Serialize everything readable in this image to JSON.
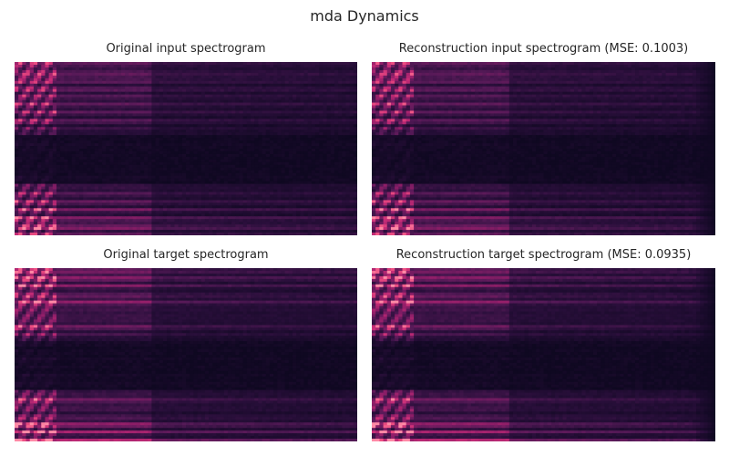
{
  "figure": {
    "title": "mda Dynamics"
  },
  "colormap": {
    "name": "magma-like",
    "background": "#0f0821",
    "stops": [
      "#0f0821",
      "#2a0f3b",
      "#571a58",
      "#8b1d67",
      "#c32b76",
      "#ef4f82",
      "#ff8aa6"
    ]
  },
  "chart_data": [
    {
      "type": "heatmap",
      "title": "Original input spectrogram",
      "xlabel": "",
      "ylabel": "",
      "grid": false,
      "legend": "none",
      "mse": null
    },
    {
      "type": "heatmap",
      "title": "Reconstruction input spectrogram (MSE: 0.1003)",
      "xlabel": "",
      "ylabel": "",
      "grid": false,
      "legend": "none",
      "mse": 0.1003
    },
    {
      "type": "heatmap",
      "title": "Original target spectrogram",
      "xlabel": "",
      "ylabel": "",
      "grid": false,
      "legend": "none",
      "mse": null
    },
    {
      "type": "heatmap",
      "title": "Reconstruction target spectrogram (MSE: 0.0935)",
      "xlabel": "",
      "ylabel": "",
      "grid": false,
      "legend": "none",
      "mse": 0.0935
    }
  ]
}
